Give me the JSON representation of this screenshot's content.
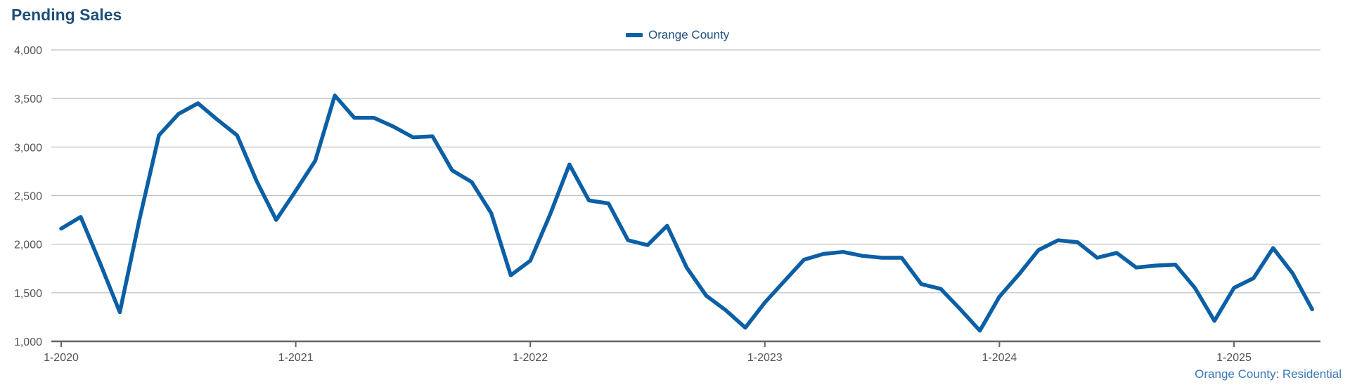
{
  "title": "Pending Sales",
  "footer_note": "Orange County: Residential",
  "colors": {
    "line": "#0b5fa5",
    "grid": "#bdbdbd",
    "axis": "#666666",
    "title": "#1f4e79"
  },
  "chart_data": {
    "type": "line",
    "title": "Pending Sales",
    "xlabel": "",
    "ylabel": "",
    "ylim": [
      1000,
      4000
    ],
    "y_ticks": [
      1000,
      1500,
      2000,
      2500,
      3000,
      3500,
      4000
    ],
    "y_tick_labels": [
      "1,000",
      "1,500",
      "2,000",
      "2,500",
      "3,000",
      "3,500",
      "4,000"
    ],
    "x_tick_labels": [
      "1-2020",
      "1-2021",
      "1-2022",
      "1-2023",
      "1-2024",
      "1-2025"
    ],
    "x_tick_month_index": [
      0,
      12,
      24,
      36,
      48,
      60
    ],
    "grid": true,
    "legend_position": "top-center",
    "x_start": "1-2020",
    "x_end": "5-2025",
    "series": [
      {
        "name": "Orange County",
        "values": [
          2160,
          2280,
          1800,
          1300,
          2250,
          3120,
          3340,
          3450,
          3280,
          3120,
          2650,
          2250,
          2550,
          2860,
          3530,
          3300,
          3300,
          3210,
          3100,
          3110,
          2760,
          2640,
          2320,
          1680,
          1830,
          2300,
          2820,
          2450,
          2420,
          2040,
          1990,
          2190,
          1760,
          1470,
          1320,
          1140,
          1400,
          1620,
          1840,
          1900,
          1920,
          1880,
          1860,
          1860,
          1590,
          1540,
          1330,
          1110,
          1460,
          1690,
          1940,
          2040,
          2020,
          1860,
          1910,
          1760,
          1780,
          1790,
          1550,
          1210,
          1550,
          1650,
          1960,
          1700,
          1330
        ]
      }
    ]
  }
}
